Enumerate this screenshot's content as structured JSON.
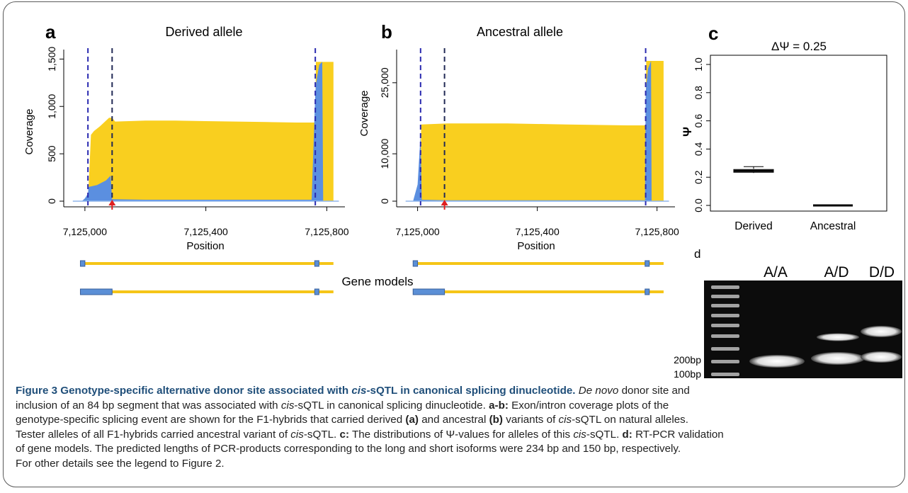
{
  "panels": {
    "a": {
      "letter": "a",
      "title": "Derived allele",
      "ylabel": "Coverage",
      "xlabel": "Position",
      "yticks": [
        {
          "value": 0,
          "label": "0"
        },
        {
          "value": 500,
          "label": "500"
        },
        {
          "value": 1000,
          "label": "1,000"
        },
        {
          "value": 1500,
          "label": "1,500"
        }
      ],
      "xticks": [
        {
          "value": 7125000,
          "label": "7,125,000"
        },
        {
          "value": 7125400,
          "label": "7,125,400"
        },
        {
          "value": 7125800,
          "label": "7,125,800"
        }
      ]
    },
    "b": {
      "letter": "b",
      "title": "Ancestral allele",
      "ylabel": "Coverage",
      "xlabel": "Position",
      "yticks": [
        {
          "value": 0,
          "label": "0"
        },
        {
          "value": 10000,
          "label": "10,000"
        },
        {
          "value": 25000,
          "label": "25,000"
        }
      ],
      "xticks": [
        {
          "value": 7125000,
          "label": "7,125,000"
        },
        {
          "value": 7125400,
          "label": "7,125,400"
        },
        {
          "value": 7125800,
          "label": "7,125,800"
        }
      ]
    },
    "c": {
      "letter": "c",
      "title": "ΔΨ = 0.25",
      "ylabel": "Ψ",
      "yticks": [
        {
          "value": 0.0,
          "label": "0.0"
        },
        {
          "value": 0.2,
          "label": "0.2"
        },
        {
          "value": 0.4,
          "label": "0.4"
        },
        {
          "value": 0.6,
          "label": "0.6"
        },
        {
          "value": 0.8,
          "label": "0.8"
        },
        {
          "value": 1.0,
          "label": "1.0"
        }
      ],
      "categories": [
        "Derived",
        "Ancestral"
      ]
    },
    "d": {
      "letter": "d",
      "lanes": [
        "A/A",
        "A/D",
        "D/D"
      ],
      "markers": [
        "200bp",
        "100bp"
      ]
    }
  },
  "gene_models_label": "Gene models",
  "chart_data": [
    {
      "type": "area",
      "panel": "a",
      "title": "Derived allele",
      "xlabel": "Position",
      "ylabel": "Coverage",
      "xlim": [
        7124930,
        7125860
      ],
      "ylim": [
        0,
        1600
      ],
      "series": [
        {
          "color": "#f9cf1f",
          "x": [
            7124980,
            7125010,
            7125020,
            7125030,
            7125050,
            7125080,
            7125090,
            7125100,
            7125200,
            7125300,
            7125400,
            7125500,
            7125600,
            7125700,
            7125762,
            7125764,
            7125780,
            7125800,
            7125822
          ],
          "y": [
            0,
            0,
            700,
            740,
            790,
            880,
            880,
            840,
            850,
            850,
            845,
            840,
            835,
            830,
            830,
            1470,
            1470,
            1470,
            1470
          ]
        },
        {
          "color": "#5b8fe0",
          "x": [
            7124990,
            7125000,
            7125010,
            7125012,
            7125040,
            7125070,
            7125085,
            7125090,
            7125200,
            7125400,
            7125600,
            7125750,
            7125762,
            7125765,
            7125775,
            7125785,
            7125788
          ],
          "y": [
            0,
            30,
            80,
            150,
            170,
            220,
            270,
            20,
            15,
            15,
            15,
            15,
            1150,
            1250,
            1440,
            1470,
            0
          ]
        }
      ],
      "vlines": [
        7125010,
        7125090,
        7125762
      ],
      "arrow_x": 7125090
    },
    {
      "type": "area",
      "panel": "b",
      "title": "Ancestral allele",
      "xlabel": "Position",
      "ylabel": "Coverage",
      "xlim": [
        7124930,
        7125860
      ],
      "ylim": [
        0,
        32000
      ],
      "series": [
        {
          "color": "#f9cf1f",
          "x": [
            7125008,
            7125012,
            7125100,
            7125300,
            7125500,
            7125700,
            7125762,
            7125764,
            7125780,
            7125822
          ],
          "y": [
            0,
            16200,
            16400,
            16400,
            16200,
            16000,
            16000,
            29600,
            29600,
            29600
          ]
        },
        {
          "color": "#5b8fe0",
          "x": [
            7124985,
            7125000,
            7125010,
            7125014,
            7125100,
            7125400,
            7125700,
            7125760,
            7125762,
            7125770,
            7125780,
            7125782
          ],
          "y": [
            0,
            3500,
            14000,
            300,
            200,
            200,
            200,
            200,
            23000,
            28000,
            29600,
            0
          ]
        }
      ],
      "vlines": [
        7125010,
        7125090,
        7125762
      ],
      "arrow_x": 7125090
    },
    {
      "type": "box",
      "panel": "c",
      "title": "ΔΨ = 0.25",
      "ylabel": "Ψ",
      "ylim": [
        0,
        1
      ],
      "categories": [
        "Derived",
        "Ancestral"
      ],
      "boxes": [
        {
          "min": 0.23,
          "q1": 0.235,
          "median": 0.245,
          "q3": 0.255,
          "max": 0.275
        },
        {
          "min": 0.0,
          "q1": 0.0,
          "median": 0.0,
          "q3": 0.0,
          "max": 0.0
        }
      ]
    }
  ],
  "gene_models": {
    "xlim": [
      7124930,
      7125860
    ],
    "models": [
      {
        "exons": [
          [
            7124985,
            7125000
          ],
          [
            7125760,
            7125770
          ]
        ],
        "span": [
          7124985,
          7125822
        ]
      },
      {
        "exons": [
          [
            7124985,
            7125090
          ],
          [
            7125760,
            7125770
          ]
        ],
        "span": [
          7124985,
          7125822
        ]
      }
    ]
  },
  "caption": {
    "title": "Figure 3 Genotype-specific alternative donor site associated with cis-sQTL in canonical splicing dinucleotide.",
    "lines": [
      "De novo donor site and",
      "inclusion of an 84 bp segment that was associated with cis-sQTL in canonical splicing dinucleotide. a-b: Exon/intron coverage plots of the",
      "genotype-specific splicing event are shown for the F1-hybrids that carried derived (a) and ancestral (b) variants of cis-sQTL on natural alleles.",
      "Tester alleles of all F1-hybrids carried ancestral variant of cis-sQTL. c: The distributions of Ψ-values for alleles of this cis-sQTL. d: RT-PCR validation",
      "of gene models. The predicted lengths of PCR-products corresponding to the long and short isoforms were 234 bp and 150 bp, respectively.",
      "For other details see the legend to Figure 2."
    ]
  }
}
